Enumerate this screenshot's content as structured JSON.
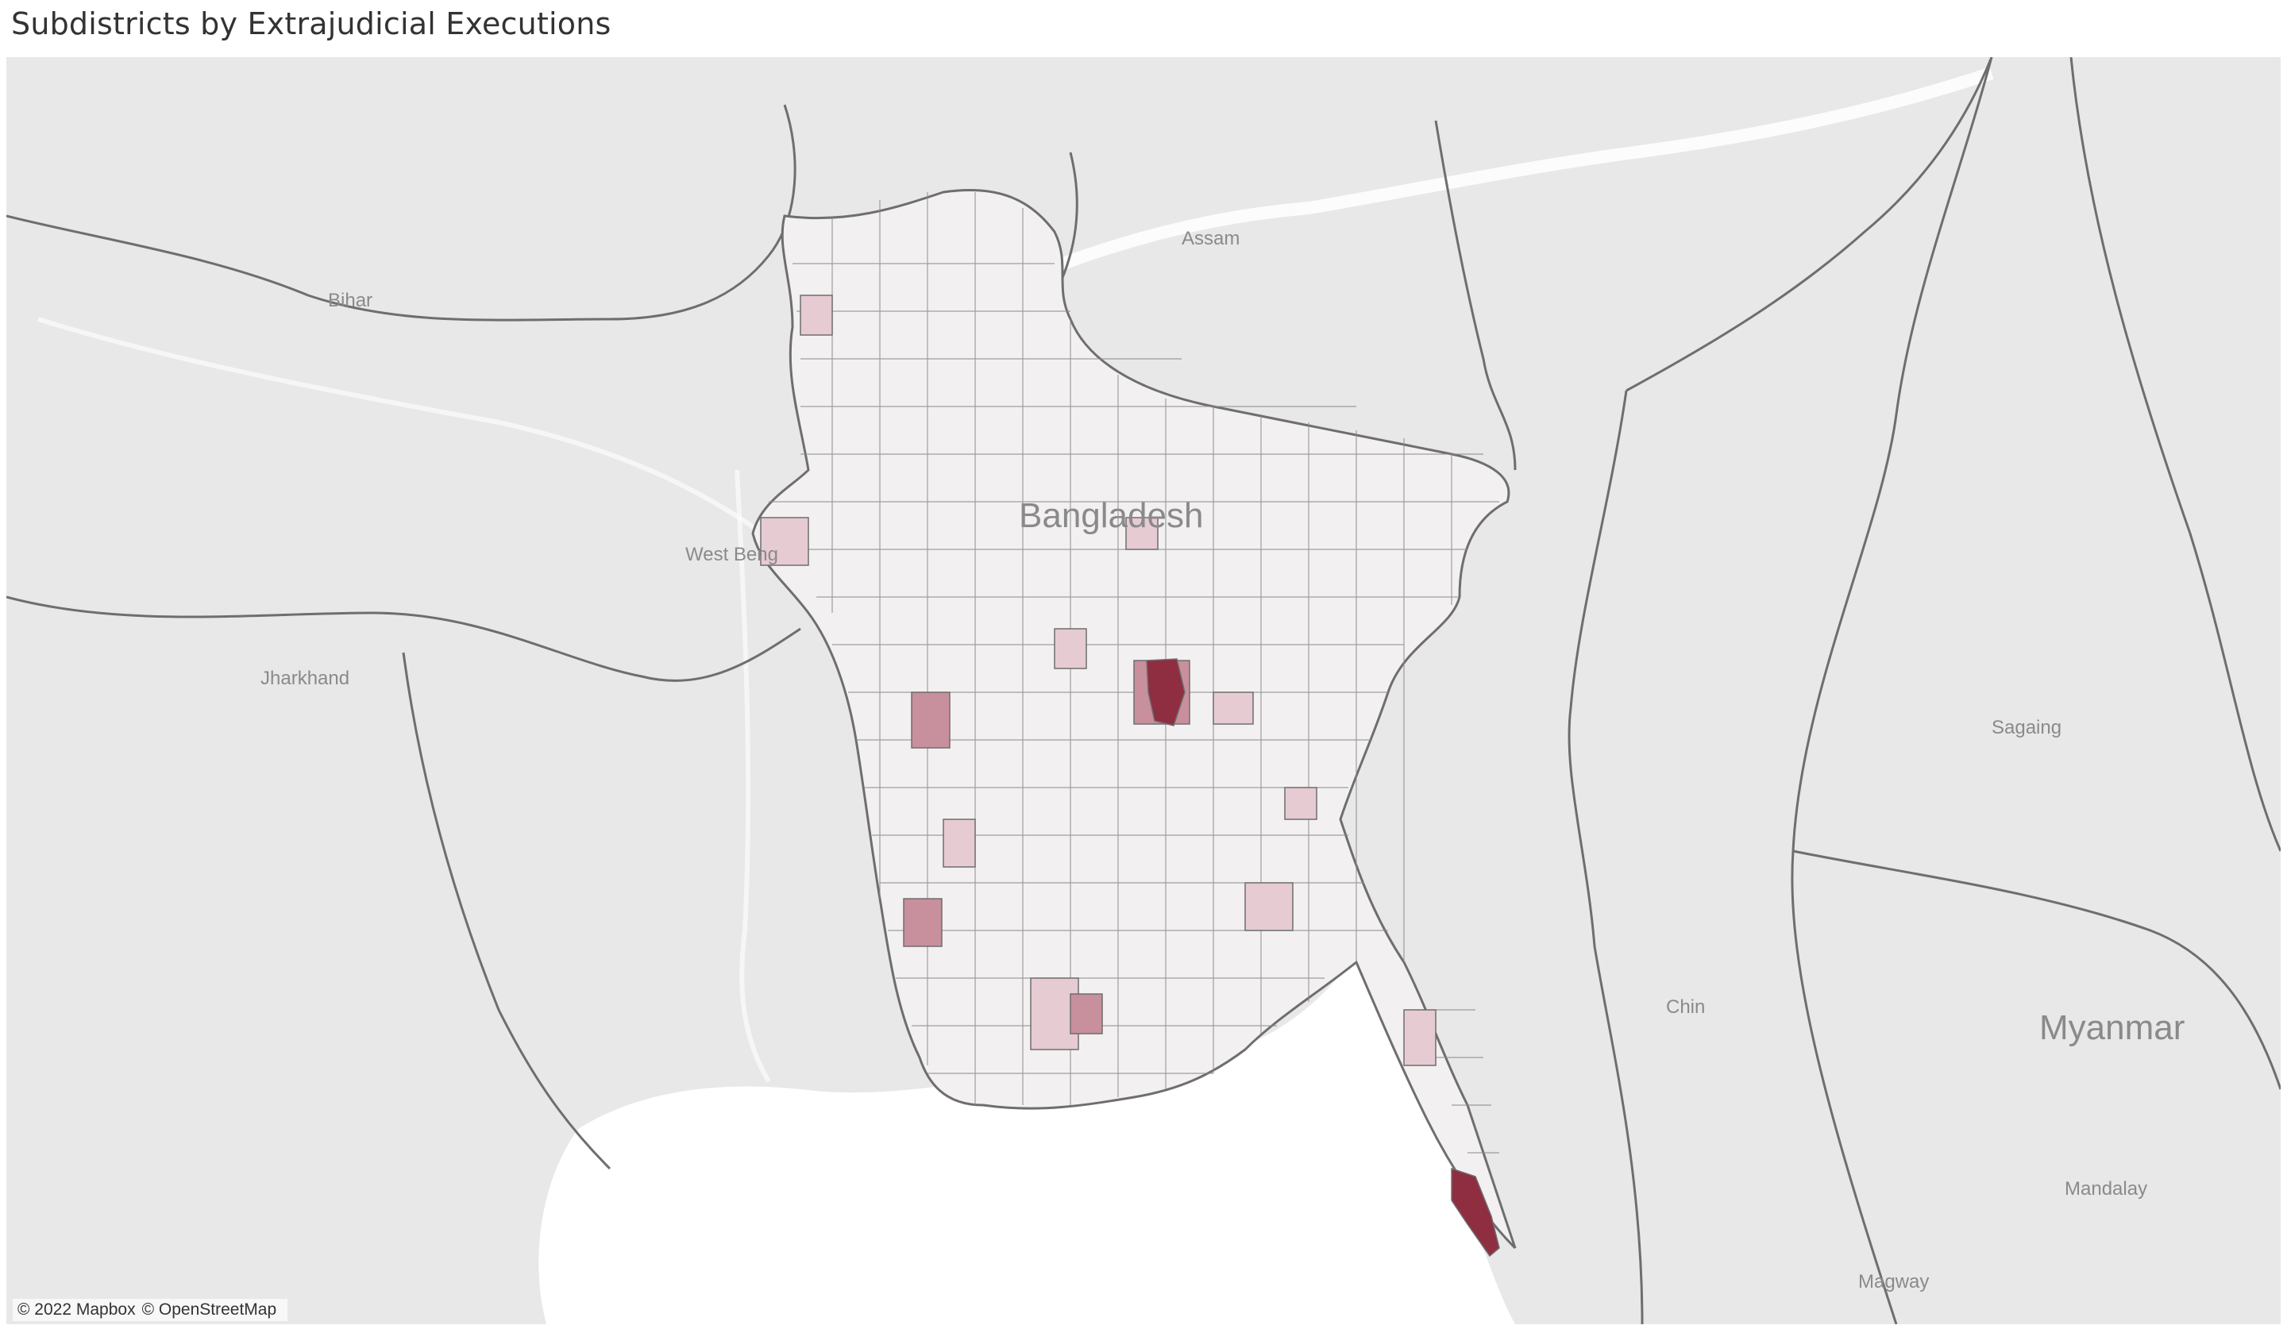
{
  "title": "Subdistricts by Extrajudicial Executions",
  "map": {
    "labels": {
      "bihar": "Bihar",
      "assam": "Assam",
      "west_bengal": "West Beng",
      "bangladesh": "Bangladesh",
      "jharkhand": "Jharkhand",
      "sagaing": "Sagaing",
      "chin": "Chin",
      "myanmar": "Myanmar",
      "mandalay": "Mandalay",
      "magway": "Magway"
    },
    "colors": {
      "land": "#e8e8e8",
      "water": "#ffffff",
      "border": "#6e6e6e",
      "subdistrict_fill": "#f3f0f1",
      "light_highlight": "#e6cbd2",
      "medium_highlight": "#c88f9c",
      "high_highlight": "#8f2e41"
    }
  },
  "attribution": {
    "mapbox": "© 2022 Mapbox",
    "osm": "© OpenStreetMap"
  }
}
